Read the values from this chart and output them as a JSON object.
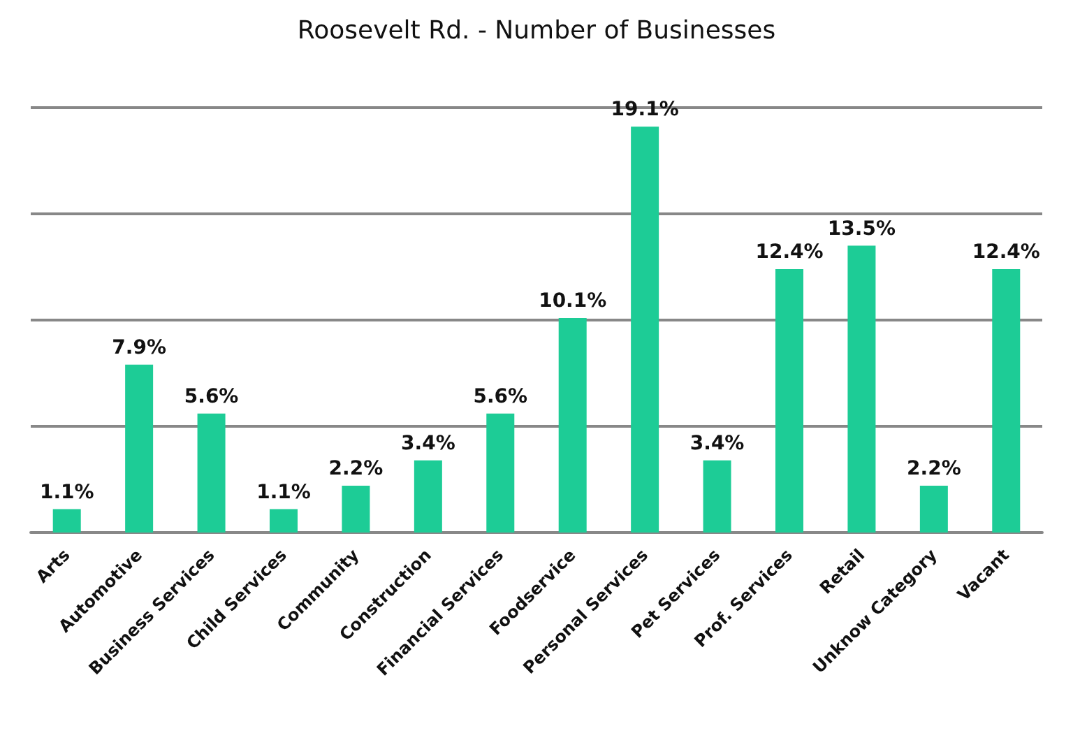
{
  "chart_data": {
    "type": "bar",
    "title": "Roosevelt Rd. - Number of Businesses",
    "categories": [
      "Arts",
      "Automotive",
      "Business Services",
      "Child Services",
      "Community",
      "Construction",
      "Financial Services",
      "Foodservice",
      "Personal Services",
      "Pet Services",
      "Prof. Services",
      "Retail",
      "Unknow Category",
      "Vacant"
    ],
    "values": [
      1.1,
      7.9,
      5.6,
      1.1,
      2.2,
      3.4,
      5.6,
      10.1,
      19.1,
      3.4,
      12.4,
      13.5,
      2.2,
      12.4
    ],
    "value_labels": [
      "1.1%",
      "7.9%",
      "5.6%",
      "1.1%",
      "2.2%",
      "3.4%",
      "5.6%",
      "10.1%",
      "19.1%",
      "3.4%",
      "12.4%",
      "13.5%",
      "2.2%",
      "12.4%"
    ],
    "color": "#1dcc96",
    "ylim": [
      0,
      20
    ],
    "yticks": [
      {
        "value": 0,
        "label": null
      },
      {
        "value": 5,
        "label": null
      },
      {
        "value": 10,
        "label": null
      },
      {
        "value": 15,
        "label": null
      },
      {
        "value": 20,
        "label": null
      }
    ],
    "tick_labels": "x",
    "grid": "y"
  }
}
